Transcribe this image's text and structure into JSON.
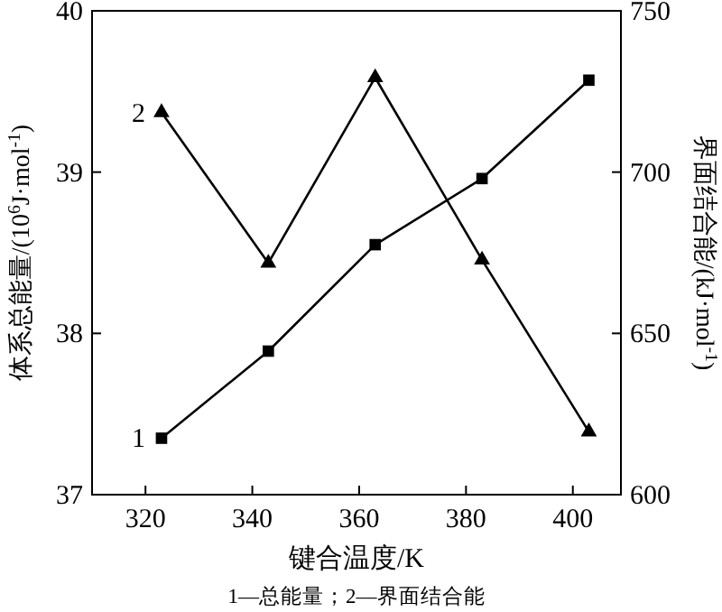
{
  "chart_data": {
    "type": "line",
    "xlabel": "键合温度/K",
    "ylabel": "体系总能量/(10$^{6}$J·mol$^{-1}$)",
    "y2label": "界面结合能/(kJ·mol$^{-1}$)",
    "x": [
      323,
      343,
      363,
      383,
      403
    ],
    "series": [
      {
        "name": "1",
        "color": "#000000",
        "marker": "square",
        "values": [
          37.35,
          37.89,
          38.55,
          38.96,
          39.57
        ]
      },
      {
        "name": "2",
        "color": "#000000",
        "marker": "triangle",
        "axis": "y2",
        "values": [
          718.5,
          671.8,
          729.3,
          672.8,
          619.5
        ]
      }
    ],
    "xlim": [
      310,
      409
    ],
    "xticks": [
      320,
      340,
      360,
      380,
      400
    ],
    "ylim": [
      37,
      40
    ],
    "yticks": [
      37,
      38,
      39,
      40
    ],
    "y2lim": [
      600,
      750
    ],
    "y2ticks": [
      600,
      650,
      700,
      750
    ],
    "grid": false,
    "line_style": "solid",
    "annotations": [
      "1—总能量；2—界面结合能"
    ]
  }
}
